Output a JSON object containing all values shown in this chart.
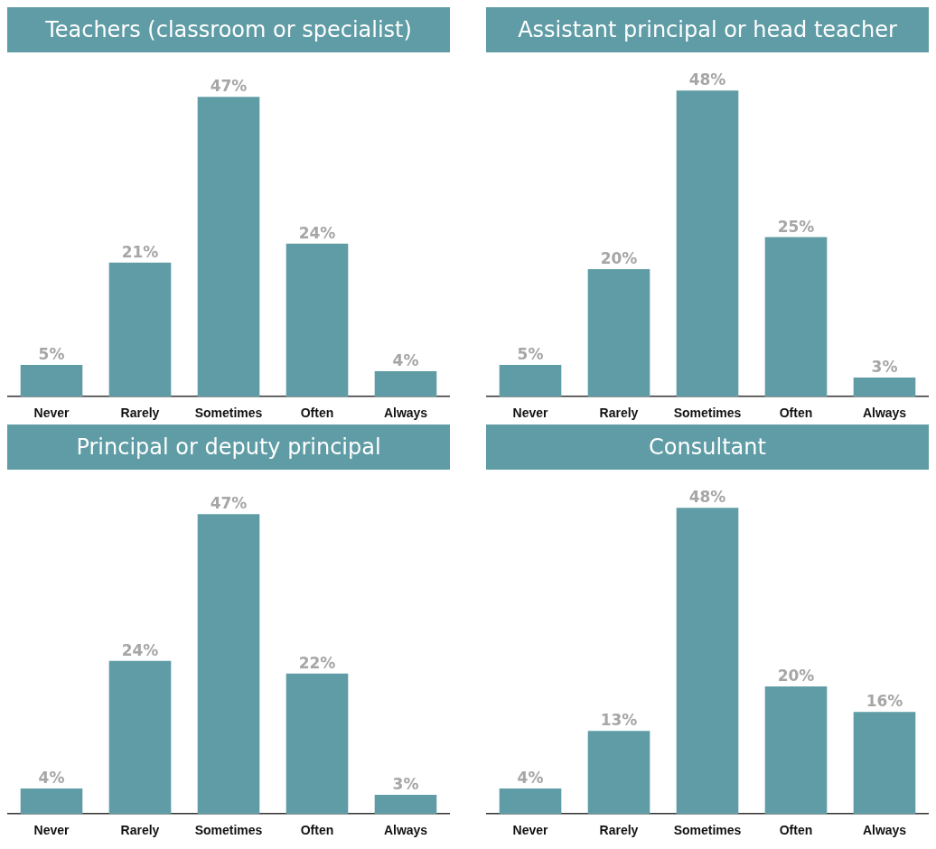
{
  "chart_data": [
    {
      "type": "bar",
      "title": "Teachers (classroom or specialist)",
      "categories": [
        "Never",
        "Rarely",
        "Sometimes",
        "Often",
        "Always"
      ],
      "values": [
        5,
        21,
        47,
        24,
        4
      ],
      "value_labels": [
        "5%",
        "21%",
        "47%",
        "24%",
        "4%"
      ],
      "color": "#5f9ca5"
    },
    {
      "type": "bar",
      "title": "Assistant principal or head teacher",
      "categories": [
        "Never",
        "Rarely",
        "Sometimes",
        "Often",
        "Always"
      ],
      "values": [
        5,
        20,
        48,
        25,
        3
      ],
      "value_labels": [
        "5%",
        "20%",
        "48%",
        "25%",
        "3%"
      ],
      "color": "#5f9ca5"
    },
    {
      "type": "bar",
      "title": "Principal or deputy principal",
      "categories": [
        "Never",
        "Rarely",
        "Sometimes",
        "Often",
        "Always"
      ],
      "values": [
        4,
        24,
        47,
        22,
        3
      ],
      "value_labels": [
        "4%",
        "24%",
        "47%",
        "22%",
        "3%"
      ],
      "color": "#5f9ca5"
    },
    {
      "type": "bar",
      "title": "Consultant",
      "categories": [
        "Never",
        "Rarely",
        "Sometimes",
        "Often",
        "Always"
      ],
      "values": [
        4,
        13,
        48,
        20,
        16
      ],
      "value_labels": [
        "4%",
        "13%",
        "48%",
        "20%",
        "16%"
      ],
      "color": "#5f9ca5"
    }
  ]
}
